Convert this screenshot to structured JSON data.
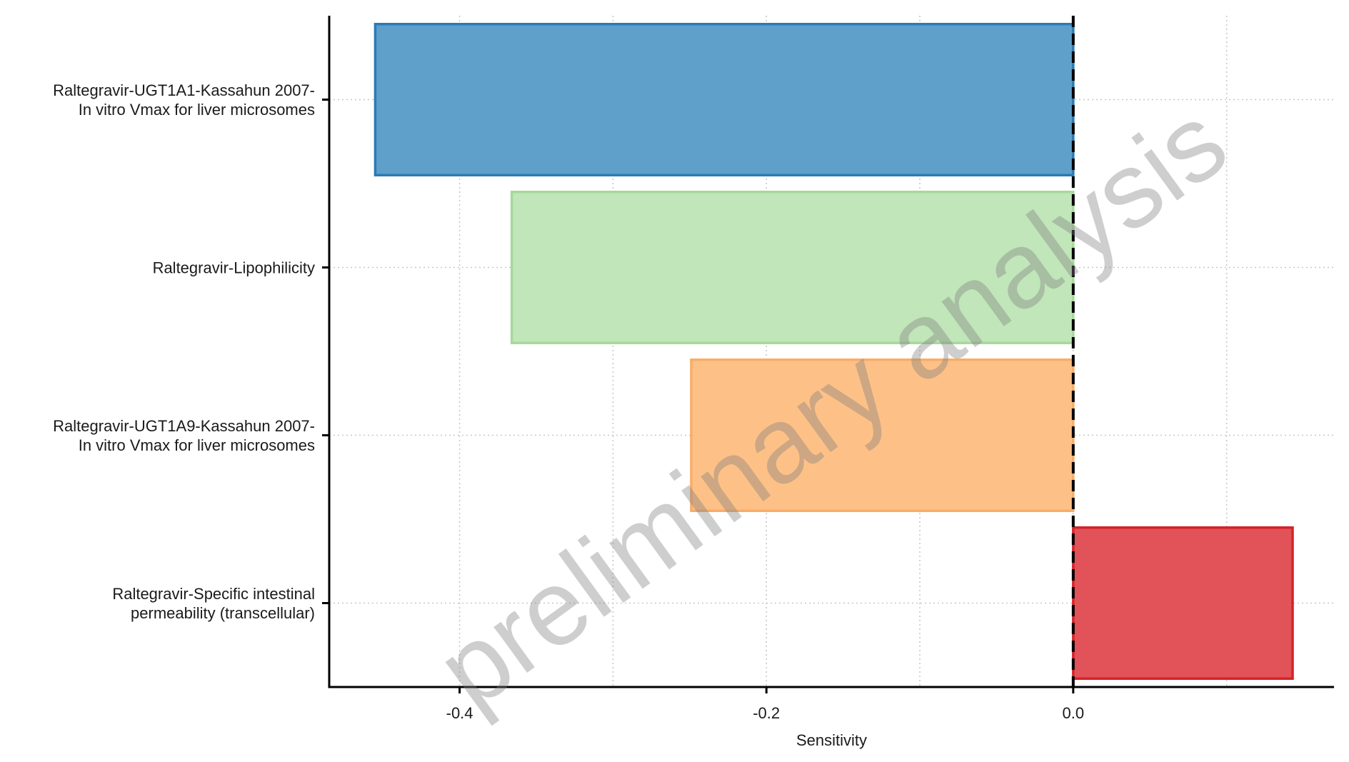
{
  "chart_data": {
    "type": "bar",
    "orientation": "horizontal",
    "title": "",
    "xlabel": "Sensitivity",
    "ylabel": "",
    "xlim": [
      -0.485,
      0.17
    ],
    "x_ticks": [
      -0.4,
      -0.2,
      0.0
    ],
    "x_tick_labels": [
      "-0.4",
      "-0.2",
      "0.0"
    ],
    "x_minor_gridlines": [
      -0.3,
      -0.1,
      0.1
    ],
    "reference_line": {
      "x": 0.0,
      "style": "dashed",
      "color": "#000000"
    },
    "grid": "dotted",
    "legend": "none",
    "categories": [
      [
        "Raltegravir-UGT1A1-Kassahun 2007-",
        "In vitro Vmax for liver microsomes"
      ],
      [
        "Raltegravir-Lipophilicity"
      ],
      [
        "Raltegravir-UGT1A9-Kassahun 2007-",
        "In vitro Vmax for liver microsomes"
      ],
      [
        "Raltegravir-Specific intestinal",
        "permeability (transcellular)"
      ]
    ],
    "values": [
      -0.455,
      -0.366,
      -0.249,
      0.143
    ],
    "bar_fills": [
      "#5fa0cb",
      "#c0e6b9",
      "#fdc187",
      "#e15358"
    ],
    "bar_strokes": [
      "#2b7bb4",
      "#a6d99b",
      "#f8ad68",
      "#d6212a"
    ],
    "watermark": "preliminary analysis"
  }
}
